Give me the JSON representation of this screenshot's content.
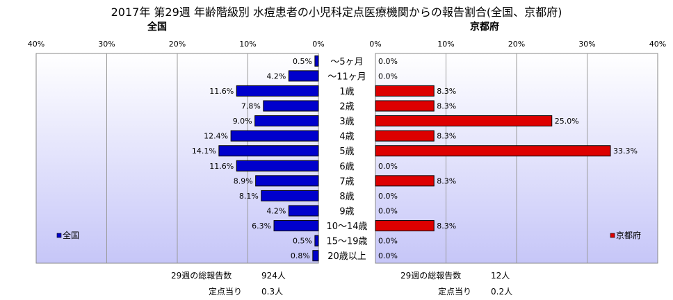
{
  "title": "2017年 第29週 年齢階級別 水痘患者の小児科定点医療機関からの報告割合(全国、京都府)",
  "colors": {
    "national": "#0000cc",
    "kyoto": "#dd0000",
    "plot_bg_top": "#ffffff",
    "plot_bg_bottom": "#c6c6f8"
  },
  "chart_data": [
    {
      "type": "bar",
      "orientation": "horizontal",
      "title": "全国",
      "categories": [
        "～5ヶ月",
        "～11ヶ月",
        "1歳",
        "2歳",
        "3歳",
        "4歳",
        "5歳",
        "6歳",
        "7歳",
        "8歳",
        "9歳",
        "10～14歳",
        "15～19歳",
        "20歳以上"
      ],
      "series": [
        {
          "name": "全国",
          "values": [
            0.5,
            4.2,
            11.6,
            7.8,
            9.0,
            12.4,
            14.1,
            11.6,
            8.9,
            8.1,
            4.2,
            6.3,
            0.5,
            0.8
          ],
          "value_labels": [
            "0.5%",
            "4.2%",
            "11.6%",
            "7.8%",
            "9.0%",
            "12.4%",
            "14.1%",
            "11.6%",
            "8.9%",
            "8.1%",
            "4.2%",
            "6.3%",
            "0.5%",
            "0.8%"
          ]
        }
      ],
      "xlim": [
        0,
        40
      ],
      "x_ticks": [
        "40%",
        "30%",
        "20%",
        "10%",
        "0%"
      ],
      "reversed_x": true,
      "legend_position": "bottom-left",
      "grid": true
    },
    {
      "type": "bar",
      "orientation": "horizontal",
      "title": "京都府",
      "categories": [
        "～5ヶ月",
        "～11ヶ月",
        "1歳",
        "2歳",
        "3歳",
        "4歳",
        "5歳",
        "6歳",
        "7歳",
        "8歳",
        "9歳",
        "10～14歳",
        "15～19歳",
        "20歳以上"
      ],
      "series": [
        {
          "name": "京都府",
          "values": [
            0.0,
            0.0,
            8.3,
            8.3,
            25.0,
            8.3,
            33.3,
            0.0,
            8.3,
            0.0,
            0.0,
            8.3,
            0.0,
            0.0
          ],
          "value_labels": [
            "0.0%",
            "0.0%",
            "8.3%",
            "8.3%",
            "25.0%",
            "8.3%",
            "33.3%",
            "0.0%",
            "8.3%",
            "0.0%",
            "0.0%",
            "8.3%",
            "0.0%",
            "0.0%"
          ]
        }
      ],
      "xlim": [
        0,
        40
      ],
      "x_ticks": [
        "0%",
        "10%",
        "20%",
        "30%",
        "40%"
      ],
      "legend_position": "bottom-right",
      "grid": true
    }
  ],
  "footer": {
    "national": {
      "total_label": "29週の総報告数",
      "total_value": "924人",
      "per_label": "定点当り",
      "per_value": "0.3人"
    },
    "kyoto": {
      "total_label": "29週の総報告数",
      "total_value": "12人",
      "per_label": "定点当り",
      "per_value": "0.2人"
    }
  }
}
